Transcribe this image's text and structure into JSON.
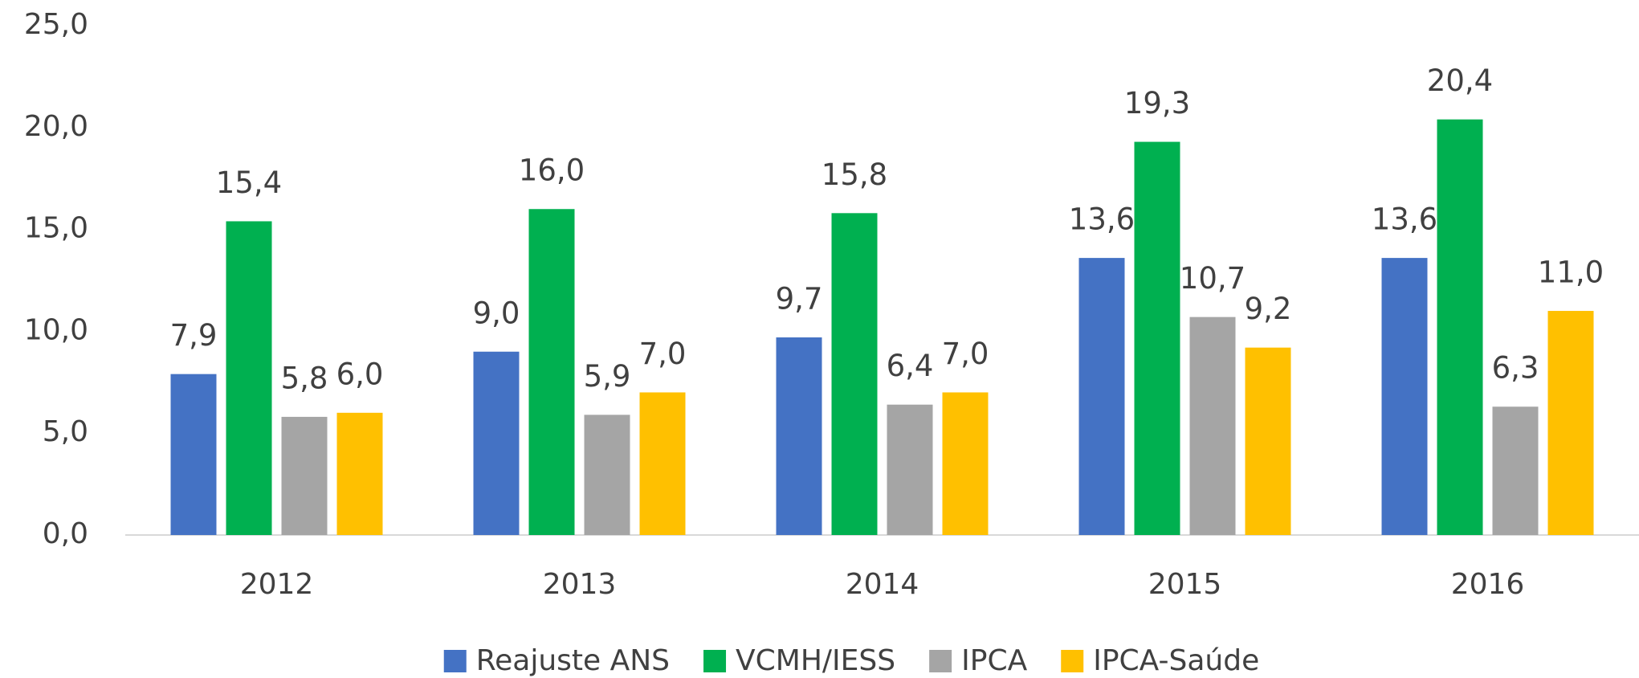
{
  "chart_data": {
    "type": "bar",
    "categories": [
      "2012",
      "2013",
      "2014",
      "2015",
      "2016"
    ],
    "series": [
      {
        "name": "Reajuste ANS",
        "color": "#4472c4",
        "values": [
          7.9,
          9.0,
          9.7,
          13.6,
          13.6
        ],
        "value_labels": [
          "7,9",
          "9,0",
          "9,7",
          "13,6",
          "13,6"
        ]
      },
      {
        "name": "VCMH/IESS",
        "color": "#00b050",
        "values": [
          15.4,
          16.0,
          15.8,
          19.3,
          20.4
        ],
        "value_labels": [
          "15,4",
          "16,0",
          "15,8",
          "19,3",
          "20,4"
        ]
      },
      {
        "name": "IPCA",
        "color": "#a5a5a5",
        "values": [
          5.8,
          5.9,
          6.4,
          10.7,
          6.3
        ],
        "value_labels": [
          "5,8",
          "5,9",
          "6,4",
          "10,7",
          "6,3"
        ]
      },
      {
        "name": "IPCA-Saúde",
        "color": "#ffc000",
        "values": [
          6.0,
          7.0,
          7.0,
          9.2,
          11.0
        ],
        "value_labels": [
          "6,0",
          "7,0",
          "7,0",
          "9,2",
          "11,0"
        ]
      }
    ],
    "ylim": [
      0,
      25
    ],
    "yticks": [
      {
        "value": 0,
        "label": "0,0"
      },
      {
        "value": 5,
        "label": "5,0"
      },
      {
        "value": 10,
        "label": "10,0"
      },
      {
        "value": 15,
        "label": "15,0"
      },
      {
        "value": 20,
        "label": "20,0"
      },
      {
        "value": 25,
        "label": "25,0"
      }
    ],
    "grid": false,
    "legend": "bottom"
  }
}
